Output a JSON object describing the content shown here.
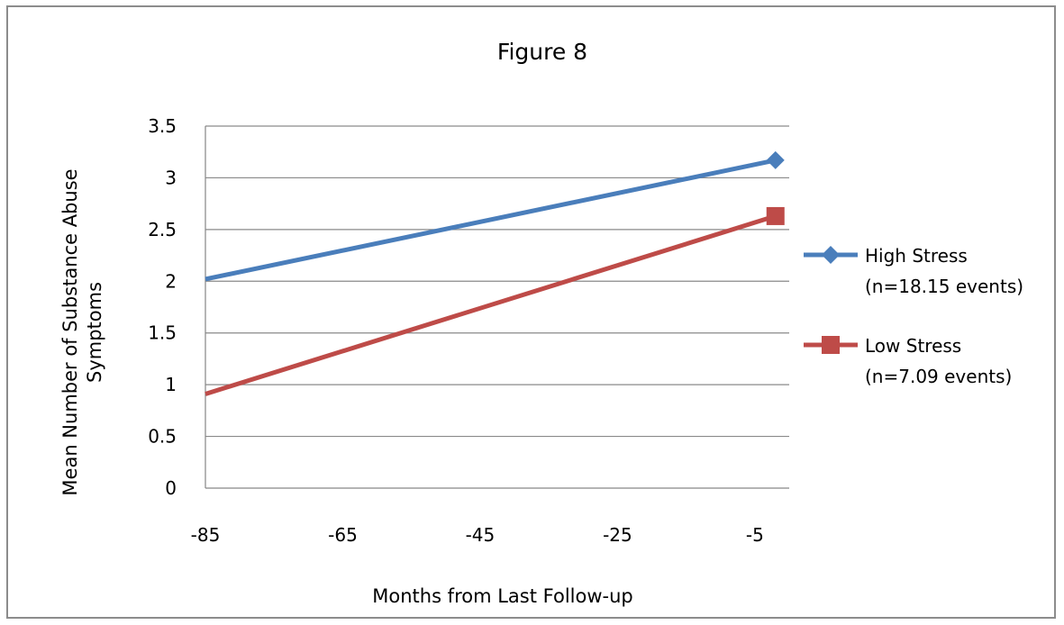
{
  "chart_data": {
    "type": "line",
    "title": "Figure 8",
    "xlabel": "Months from Last Follow-up",
    "ylabel": "Mean Number of Substance Abuse Symptoms",
    "ylabel_lines": [
      "Mean Number of Substance Abuse",
      "Symptoms"
    ],
    "x_ticks": [
      -85,
      -65,
      -45,
      -25,
      -5
    ],
    "y_ticks": [
      0,
      0.5,
      1,
      1.5,
      2,
      2.5,
      3,
      3.5
    ],
    "y_tick_labels": [
      "0",
      "0.5",
      "1",
      "1.5",
      "2",
      "2.5",
      "3",
      "3.5"
    ],
    "xlim": [
      -85,
      0
    ],
    "ylim": [
      0,
      3.5
    ],
    "grid": "horizontal",
    "legend_position": "right",
    "series": [
      {
        "name": "High Stress",
        "name_line2": "(n=18.15 events)",
        "color": "#4a7ebb",
        "marker": "diamond",
        "x": [
          -85,
          -2
        ],
        "y": [
          2.02,
          3.17
        ]
      },
      {
        "name": "Low Stress",
        "name_line2": "(n=7.09 events)",
        "color": "#be4b48",
        "marker": "square",
        "x": [
          -85,
          -2
        ],
        "y": [
          0.91,
          2.63
        ]
      }
    ]
  }
}
